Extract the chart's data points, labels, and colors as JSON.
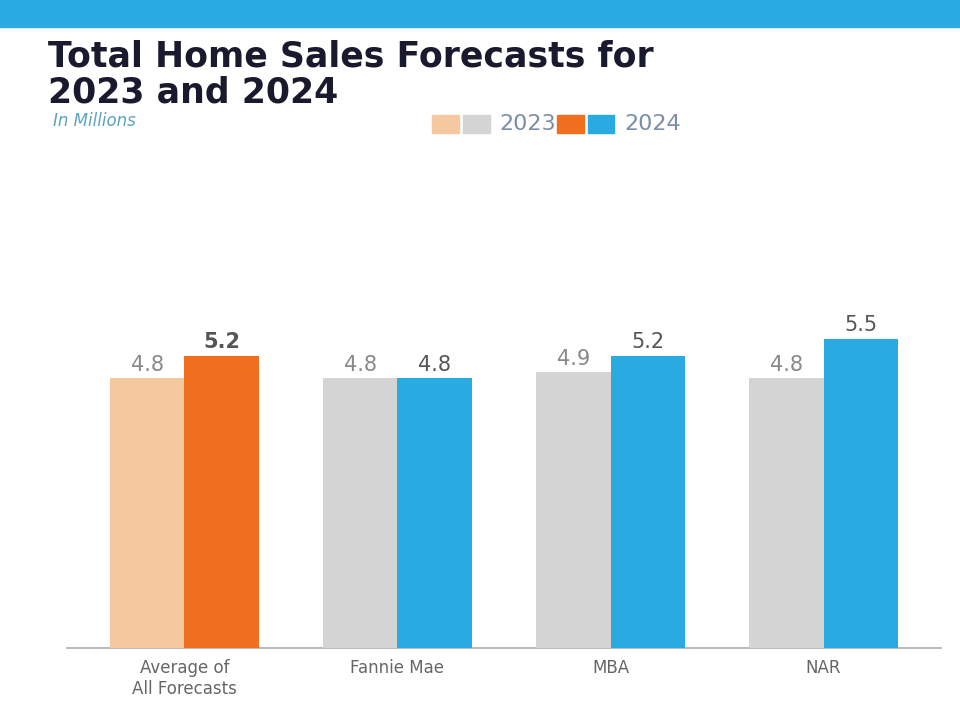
{
  "title_line1": "Total Home Sales Forecasts for",
  "title_line2": "2023 and 2024",
  "subtitle": "In Millions",
  "categories": [
    "Average of\nAll Forecasts",
    "Fannie Mae",
    "MBA",
    "NAR"
  ],
  "values_2023": [
    4.8,
    4.8,
    4.9,
    4.8
  ],
  "values_2024": [
    5.2,
    4.8,
    5.2,
    5.5
  ],
  "color_2023_avg": "#F5C9A0",
  "color_2024_avg": "#F07020",
  "color_2023_other": "#D4D4D4",
  "color_2024_other": "#29ABE2",
  "title_color": "#1A1A2E",
  "subtitle_color": "#5BA3C0",
  "label_color_2023": "#888888",
  "label_color_2024": "#555555",
  "bar_width": 0.35,
  "top_bar_color": "#29ABE2",
  "background_color": "#FFFFFF",
  "ylim": [
    0,
    6.4
  ],
  "legend_2023": "2023",
  "legend_2024": "2024",
  "legend_color": "#7A8FA6"
}
